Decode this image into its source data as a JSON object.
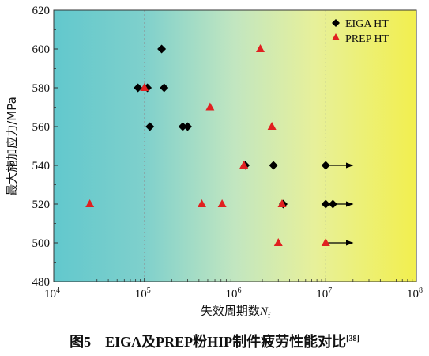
{
  "chart_data": {
    "type": "scatter",
    "title": "",
    "xlabel": "失效周期数",
    "xlabel_sub": "f",
    "xlabel_var": "N",
    "ylabel": "最大施加应力/MPa",
    "xscale": "log",
    "xlim": [
      10000,
      100000000
    ],
    "ylim": [
      480,
      620
    ],
    "x_tick_exponents": [
      "4",
      "5",
      "6",
      "7",
      "8"
    ],
    "x_tick_base": "10",
    "y_ticks": [
      "480",
      "500",
      "520",
      "540",
      "560",
      "580",
      "600",
      "620"
    ],
    "grid": "dashed vertical at decades",
    "legend_position": "top-right",
    "runout_arrows": [
      {
        "x": 10000000,
        "y": 540
      },
      {
        "x": 10000000,
        "y": 520
      },
      {
        "x": 10000000,
        "y": 500
      }
    ],
    "series": [
      {
        "name": "EIGA HT",
        "marker": "diamond",
        "color": "#000000",
        "points": [
          {
            "x": 155000,
            "y": 600
          },
          {
            "x": 85000,
            "y": 580
          },
          {
            "x": 108000,
            "y": 580
          },
          {
            "x": 165000,
            "y": 580
          },
          {
            "x": 115000,
            "y": 560
          },
          {
            "x": 265000,
            "y": 560
          },
          {
            "x": 300000,
            "y": 560
          },
          {
            "x": 1300000,
            "y": 540
          },
          {
            "x": 2650000,
            "y": 540
          },
          {
            "x": 10000000,
            "y": 540
          },
          {
            "x": 3400000,
            "y": 520
          },
          {
            "x": 10000000,
            "y": 520
          },
          {
            "x": 12000000,
            "y": 520
          }
        ]
      },
      {
        "name": "PREP HT",
        "marker": "triangle",
        "color": "#e02020",
        "points": [
          {
            "x": 1900000,
            "y": 600
          },
          {
            "x": 100000,
            "y": 580
          },
          {
            "x": 530000,
            "y": 570
          },
          {
            "x": 2550000,
            "y": 560
          },
          {
            "x": 1250000,
            "y": 540
          },
          {
            "x": 25000,
            "y": 520
          },
          {
            "x": 430000,
            "y": 520
          },
          {
            "x": 720000,
            "y": 520
          },
          {
            "x": 3300000,
            "y": 520
          },
          {
            "x": 3000000,
            "y": 500
          },
          {
            "x": 10000000,
            "y": 500
          }
        ]
      }
    ]
  },
  "caption": {
    "text": "图5　EIGA及PREP粉HIP制件疲劳性能对比",
    "ref": "[38]"
  }
}
